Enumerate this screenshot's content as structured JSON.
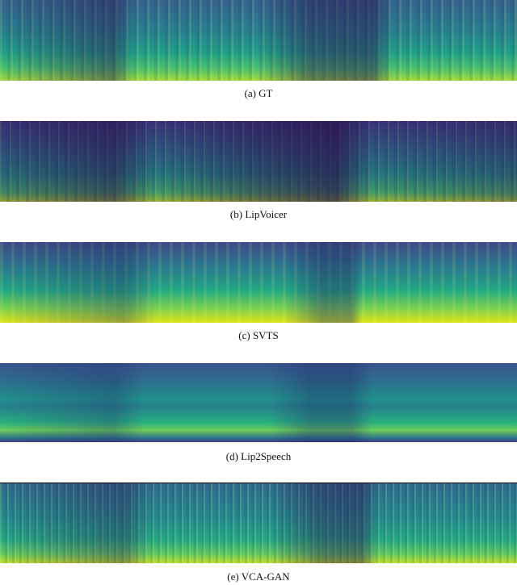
{
  "figure": {
    "panels": [
      {
        "caption": "(a) GT"
      },
      {
        "caption": "(b) LipVoicer"
      },
      {
        "caption": "(c) SVTS"
      },
      {
        "caption": "(d) Lip2Speech"
      },
      {
        "caption": "(e) VCA-GAN"
      }
    ]
  }
}
